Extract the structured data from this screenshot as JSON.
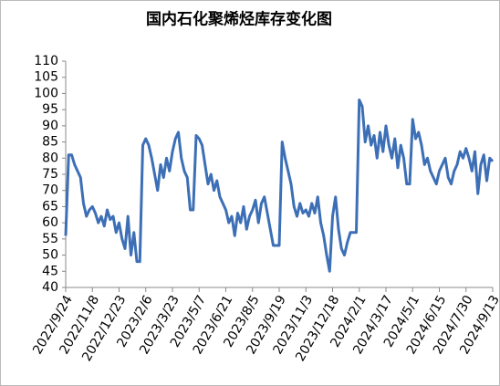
{
  "chart_data": {
    "type": "line",
    "title": "国内石化聚烯烃库存变化图",
    "categories": [
      "2022/9/24",
      null,
      null,
      null,
      null,
      null,
      null,
      null,
      null,
      "2022/11/8",
      null,
      null,
      null,
      null,
      null,
      null,
      null,
      null,
      "2022/12/23",
      null,
      null,
      null,
      null,
      null,
      null,
      null,
      null,
      "2023/2/6",
      null,
      null,
      null,
      null,
      null,
      null,
      null,
      null,
      "2023/3/23",
      null,
      null,
      null,
      null,
      null,
      null,
      null,
      null,
      "2023/5/7",
      null,
      null,
      null,
      null,
      null,
      null,
      null,
      null,
      "2023/6/21",
      null,
      null,
      null,
      null,
      null,
      null,
      null,
      null,
      "2023/8/5",
      null,
      null,
      null,
      null,
      null,
      null,
      null,
      null,
      "2023/9/19",
      null,
      null,
      null,
      null,
      null,
      null,
      null,
      null,
      "2023/11/3",
      null,
      null,
      null,
      null,
      null,
      null,
      null,
      null,
      "2023/12/18",
      null,
      null,
      null,
      null,
      null,
      null,
      null,
      null,
      "2024/2/1",
      null,
      null,
      null,
      null,
      null,
      null,
      null,
      null,
      "2024/3/17",
      null,
      null,
      null,
      null,
      null,
      null,
      null,
      null,
      "2024/5/1",
      null,
      null,
      null,
      null,
      null,
      null,
      null,
      null,
      "2024/6/15",
      null,
      null,
      null,
      null,
      null,
      null,
      null,
      null,
      "2024/7/30",
      null,
      null,
      null,
      null,
      null,
      null,
      null,
      null,
      "2024/9/13"
    ],
    "values": [
      56,
      81,
      81,
      78,
      76,
      74,
      66,
      62,
      64,
      65,
      63,
      60,
      62,
      59,
      64,
      61,
      62,
      57,
      60,
      55,
      52,
      62,
      50,
      57,
      48,
      48,
      84,
      86,
      84,
      80,
      75,
      70,
      78,
      74,
      80,
      76,
      82,
      86,
      88,
      80,
      76,
      74,
      64,
      64,
      87,
      86,
      84,
      78,
      72,
      75,
      70,
      73,
      68,
      66,
      64,
      60,
      62,
      56,
      63,
      60,
      65,
      58,
      62,
      64,
      67,
      60,
      66,
      68,
      63,
      58,
      53,
      53,
      53,
      85,
      80,
      76,
      72,
      65,
      62,
      66,
      63,
      64,
      62,
      66,
      63,
      68,
      60,
      56,
      50,
      45,
      62,
      68,
      58,
      52,
      50,
      54,
      57,
      57,
      57,
      98,
      96,
      85,
      90,
      84,
      87,
      80,
      88,
      82,
      90,
      84,
      80,
      86,
      77,
      84,
      80,
      72,
      72,
      92,
      86,
      88,
      84,
      78,
      80,
      76,
      74,
      72,
      76,
      78,
      80,
      74,
      72,
      76,
      78,
      82,
      80,
      83,
      80,
      76,
      82,
      69,
      78,
      81,
      73,
      80,
      79
    ],
    "color": "#3c6fb6",
    "ylim": [
      40,
      110
    ],
    "yticks": [
      40,
      45,
      50,
      55,
      60,
      65,
      70,
      75,
      80,
      85,
      90,
      95,
      100,
      105,
      110
    ]
  }
}
